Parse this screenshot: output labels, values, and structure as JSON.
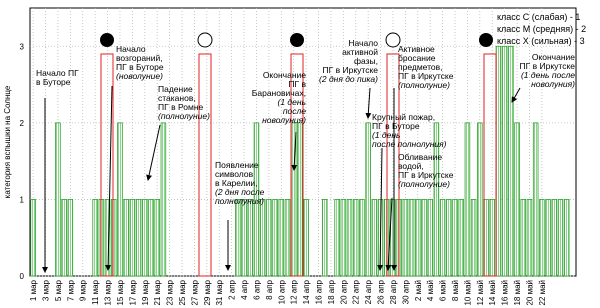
{
  "chart_data": {
    "type": "bar",
    "y_label": "категория вспышки на Солнце",
    "categories": [
      "1 мар",
      null,
      "3 мар",
      null,
      "5 мар",
      null,
      "7 мар",
      null,
      "9 мар",
      null,
      "11 мар",
      null,
      "13 мар",
      null,
      "15 мар",
      null,
      "17 мар",
      null,
      "19 мар",
      null,
      "21 мар",
      null,
      "23 мар",
      null,
      "25 мар",
      null,
      "27 мар",
      null,
      "29 мар",
      null,
      "31 мар",
      null,
      "2 апр",
      null,
      "4 апр",
      null,
      "6 апр",
      null,
      "8 апр",
      null,
      "10 апр",
      null,
      "12 апр",
      null,
      "14 апр",
      null,
      "16 апр",
      null,
      "18 апр",
      null,
      "20 апр",
      null,
      "22 апр",
      null,
      "24 апр",
      null,
      "26 апр",
      null,
      "28 апр",
      null,
      "30 апр",
      null,
      "2 май",
      null,
      "4 май",
      null,
      "6 май",
      null,
      "8 май",
      null,
      "10 май",
      null,
      "12 май",
      null,
      "14 май",
      null,
      "16 май",
      null,
      "18 май",
      null,
      "20 май",
      null,
      "22 май",
      null,
      null,
      null,
      null,
      null
    ],
    "values": [
      1,
      0,
      0,
      0,
      2,
      1,
      1,
      0,
      0,
      0,
      1,
      1,
      1,
      1,
      2,
      1,
      1,
      1,
      1,
      1,
      1,
      2,
      0,
      0,
      0,
      0,
      0,
      0,
      0,
      0,
      0,
      0,
      0,
      1,
      1,
      1,
      2,
      1,
      1,
      1,
      1,
      1,
      2,
      2,
      1,
      0,
      0,
      1,
      0,
      1,
      1,
      1,
      1,
      1,
      2,
      1,
      1,
      1,
      1,
      1,
      1,
      1,
      1,
      1,
      1,
      2,
      1,
      1,
      1,
      1,
      2,
      1,
      2,
      1,
      1,
      3,
      3,
      3,
      2,
      1,
      1,
      2,
      1,
      1,
      1,
      1,
      1,
      0
    ],
    "color": "#2ca02c",
    "ylim": [
      0,
      3.5
    ],
    "yticks": [
      0,
      1,
      2,
      3
    ],
    "grid": true,
    "legend": [
      "класс С (слабая) - 1",
      "класс М (средняя) - 2",
      "класс Х (сильная) - 3"
    ],
    "annotations": [
      {
        "lines": [
          "Начало ПГ",
          "в Буторе"
        ],
        "note": []
      },
      {
        "lines": [
          "Начало",
          "возгораний,",
          "ПГ в Буторе"
        ],
        "note": [
          "(новолуние)"
        ]
      },
      {
        "lines": [
          "Падение",
          "стаканов,",
          "ПГ в Ромне"
        ],
        "note": [
          "(полнолуние)"
        ]
      },
      {
        "lines": [
          "Появление",
          "символов",
          "в Карелии,"
        ],
        "note": [
          "(2 дня после",
          "полнолуния)"
        ]
      },
      {
        "lines": [
          "Окончание",
          "ПГ в",
          "Барановичах,"
        ],
        "note": [
          "(1 день",
          "после",
          "новолуния)"
        ]
      },
      {
        "lines": [
          "Начало",
          "активной",
          "фазы,",
          "ПГ в Иркутске"
        ],
        "note": [
          "(2 дня до пика)"
        ]
      },
      {
        "lines": [
          "Активное",
          "бросание",
          "предметов,",
          "ПГ в Иркутске"
        ],
        "note": [
          "(полнолуние)"
        ]
      },
      {
        "lines": [
          "Крупный пожар,",
          "ПГ в Буторе"
        ],
        "note": [
          "(1 день",
          "после полнолуния)"
        ]
      },
      {
        "lines": [
          "Обливание",
          "водой,",
          "ПГ в Иркутске"
        ],
        "note": [
          "(полнолуние)"
        ]
      },
      {
        "lines": [
          "Окончание",
          "ПГ в Иркутске"
        ],
        "note": [
          "(1 день после",
          "новолуния)"
        ]
      }
    ]
  }
}
